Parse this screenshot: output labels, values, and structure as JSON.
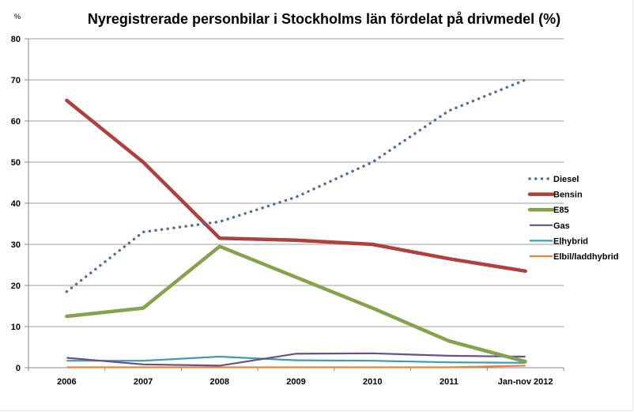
{
  "chart_data": {
    "type": "line",
    "title": "Nyregistrerade personbilar i Stockholms län fördelat på drivmedel (%)",
    "ylabel": "%",
    "xlabel": "",
    "ylim": [
      0,
      80
    ],
    "yticks": [
      0,
      10,
      20,
      30,
      40,
      50,
      60,
      70,
      80
    ],
    "grid": true,
    "legend_position": "right",
    "categories": [
      "2006",
      "2007",
      "2008",
      "2009",
      "2010",
      "2011",
      "Jan-nov 2012"
    ],
    "series": [
      {
        "name": "Diesel",
        "color": "#4f6fa3",
        "style": "dotted",
        "values": [
          18.5,
          33,
          35.5,
          41.5,
          50,
          62.5,
          70
        ]
      },
      {
        "name": "Bensin",
        "color": "#b13f3c",
        "style": "solid-thick",
        "values": [
          65,
          50,
          31.5,
          31,
          30,
          26.5,
          23.5
        ]
      },
      {
        "name": "E85",
        "color": "#84a34a",
        "style": "solid-thick",
        "values": [
          12.5,
          14.5,
          29.5,
          22,
          14.5,
          6.5,
          1.5
        ]
      },
      {
        "name": "Gas",
        "color": "#6b4f8c",
        "style": "solid",
        "values": [
          2.4,
          0.8,
          0.5,
          3.4,
          3.5,
          2.9,
          2.7
        ]
      },
      {
        "name": "Elhybrid",
        "color": "#3d9cb0",
        "style": "solid",
        "values": [
          1.7,
          1.7,
          2.7,
          1.8,
          1.7,
          1.3,
          1.2
        ]
      },
      {
        "name": "Elbil/laddhybrid",
        "color": "#e8843a",
        "style": "solid",
        "values": [
          0.1,
          0.1,
          0.1,
          0.1,
          0.1,
          0.1,
          0.5
        ]
      }
    ]
  }
}
